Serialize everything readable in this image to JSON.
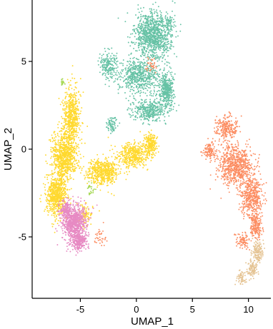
{
  "chart_data": {
    "type": "scatter",
    "title": "",
    "xlabel": "UMAP_1",
    "ylabel": "UMAP_2",
    "xlim": [
      -9.3,
      12.0
    ],
    "ylim": [
      -8.5,
      8.5
    ],
    "xticks": [
      -5,
      0,
      5,
      10
    ],
    "yticks": [
      -5,
      0,
      5
    ],
    "grid": false,
    "legend": "none",
    "point_radius_units": 0.06,
    "series": [
      {
        "color": "#66C2A5",
        "count": 2600,
        "regions": [
          {
            "cx": 1.5,
            "cy": 6.5,
            "sx": 1.3,
            "sy": 1.1,
            "w": 0.38
          },
          {
            "cx": 0.2,
            "cy": 4.2,
            "sx": 1.5,
            "sy": 0.9,
            "w": 0.22
          },
          {
            "cx": 2.7,
            "cy": 3.4,
            "sx": 0.5,
            "sy": 0.8,
            "w": 0.14
          },
          {
            "cx": 1.2,
            "cy": 2.2,
            "sx": 1.3,
            "sy": 0.5,
            "w": 0.14
          },
          {
            "cx": -2.5,
            "cy": 4.8,
            "sx": 0.7,
            "sy": 0.6,
            "w": 0.07
          },
          {
            "cx": -2.2,
            "cy": 1.4,
            "sx": 0.4,
            "sy": 0.4,
            "w": 0.03
          },
          {
            "cx": 2.9,
            "cy": 7.1,
            "sx": 0.4,
            "sy": 0.5,
            "w": 0.02
          }
        ]
      },
      {
        "color": "#FFD92F",
        "count": 3300,
        "regions": [
          {
            "cx": -5.8,
            "cy": 1.8,
            "sx": 0.6,
            "sy": 1.3,
            "w": 0.18
          },
          {
            "cx": -6.4,
            "cy": -0.4,
            "sx": 0.9,
            "sy": 1.1,
            "w": 0.24
          },
          {
            "cx": -7.1,
            "cy": -2.6,
            "sx": 0.8,
            "sy": 1.0,
            "w": 0.2
          },
          {
            "cx": -3.0,
            "cy": -1.3,
            "sx": 1.2,
            "sy": 0.6,
            "w": 0.16
          },
          {
            "cx": -0.3,
            "cy": -0.3,
            "sx": 1.2,
            "sy": 0.6,
            "w": 0.13
          },
          {
            "cx": 1.3,
            "cy": 0.3,
            "sx": 0.5,
            "sy": 0.5,
            "w": 0.06
          },
          {
            "cx": -4.6,
            "cy": -3.8,
            "sx": 0.7,
            "sy": 0.6,
            "w": 0.03
          }
        ]
      },
      {
        "color": "#E78AC3",
        "count": 1100,
        "regions": [
          {
            "cx": -5.6,
            "cy": -4.2,
            "sx": 0.9,
            "sy": 0.8,
            "w": 0.65
          },
          {
            "cx": -5.1,
            "cy": -5.3,
            "sx": 0.6,
            "sy": 0.4,
            "w": 0.22
          },
          {
            "cx": -6.3,
            "cy": -3.4,
            "sx": 0.4,
            "sy": 0.4,
            "w": 0.13
          }
        ]
      },
      {
        "color": "#FC8D62",
        "count": 1800,
        "regions": [
          {
            "cx": 8.8,
            "cy": -0.9,
            "sx": 1.3,
            "sy": 0.9,
            "w": 0.38
          },
          {
            "cx": 10.3,
            "cy": -2.7,
            "sx": 0.8,
            "sy": 0.9,
            "w": 0.24
          },
          {
            "cx": 8.0,
            "cy": 1.2,
            "sx": 0.8,
            "sy": 0.6,
            "w": 0.13
          },
          {
            "cx": 10.7,
            "cy": -4.4,
            "sx": 0.5,
            "sy": 0.6,
            "w": 0.1
          },
          {
            "cx": 6.5,
            "cy": -0.1,
            "sx": 0.5,
            "sy": 0.4,
            "w": 0.06
          },
          {
            "cx": 9.5,
            "cy": -5.2,
            "sx": 0.5,
            "sy": 0.4,
            "w": 0.05
          },
          {
            "cx": -3.2,
            "cy": -5.0,
            "sx": 0.5,
            "sy": 0.4,
            "w": 0.02
          },
          {
            "cx": 1.3,
            "cy": 4.8,
            "sx": 0.4,
            "sy": 0.4,
            "w": 0.02
          }
        ]
      },
      {
        "color": "#E5C494",
        "count": 300,
        "regions": [
          {
            "cx": 10.8,
            "cy": -5.8,
            "sx": 0.4,
            "sy": 0.5,
            "w": 0.45
          },
          {
            "cx": 10.3,
            "cy": -6.8,
            "sx": 0.4,
            "sy": 0.4,
            "w": 0.35
          },
          {
            "cx": 9.4,
            "cy": -7.3,
            "sx": 0.4,
            "sy": 0.3,
            "w": 0.2
          }
        ]
      },
      {
        "color": "#A6D854",
        "count": 45,
        "regions": [
          {
            "cx": -6.6,
            "cy": 3.8,
            "sx": 0.15,
            "sy": 0.15,
            "w": 0.45
          },
          {
            "cx": -4.1,
            "cy": -2.3,
            "sx": 0.3,
            "sy": 0.4,
            "w": 0.55
          }
        ]
      }
    ]
  }
}
